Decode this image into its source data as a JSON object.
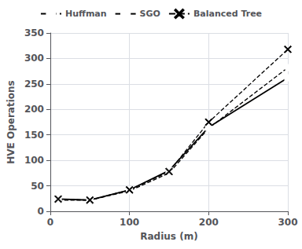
{
  "chart_data": {
    "type": "line",
    "x": [
      10,
      50,
      100,
      150,
      200,
      300
    ],
    "series": [
      {
        "name": "Huffman",
        "color": "#000000",
        "values": [
          22,
          22,
          40,
          75,
          163,
          282
        ],
        "marker": "circle",
        "line_style": "dashed"
      },
      {
        "name": "SGO",
        "color": "#000000",
        "values": [
          24,
          22,
          42,
          80,
          165,
          262
        ],
        "marker": "square",
        "line_style": "solid"
      },
      {
        "name": "Balanced Tree",
        "color": "#000000",
        "values": [
          24,
          22,
          42,
          78,
          175,
          318
        ],
        "marker": "x",
        "line_style": "dashed"
      }
    ],
    "xlabel": "Radius (m)",
    "ylabel": "HVE Operations",
    "xlim": [
      0,
      300
    ],
    "ylim": [
      0,
      350
    ],
    "xticks": [
      0,
      100,
      200,
      300
    ],
    "yticks": [
      0,
      50,
      100,
      150,
      200,
      250,
      300,
      350
    ],
    "grid": true,
    "legend": "top"
  }
}
